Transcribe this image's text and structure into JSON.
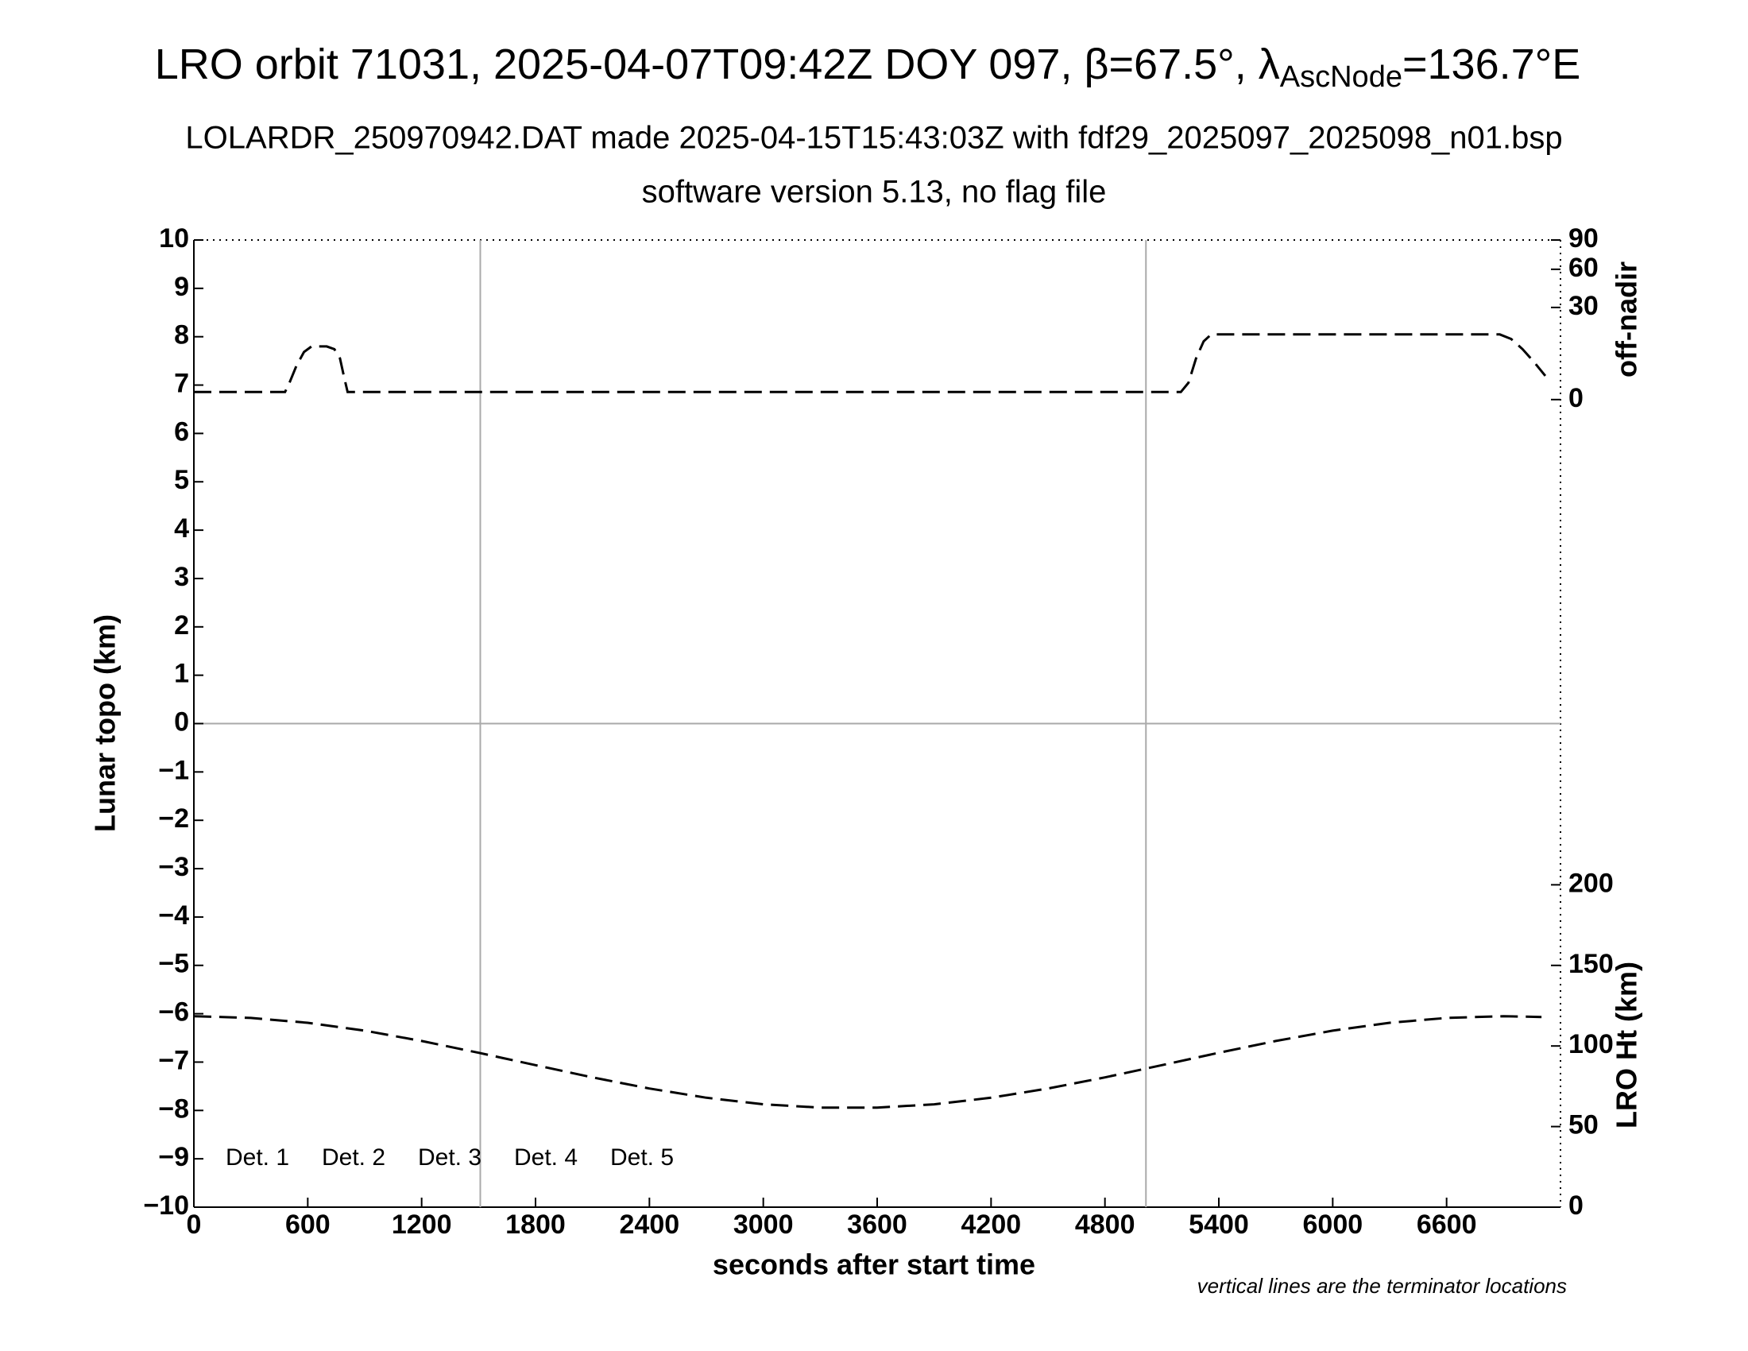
{
  "chart_data": {
    "type": "line",
    "title_parts": [
      "LRO orbit 71031, 2025-04-07T09:42Z DOY 097, β=67.5°, λ",
      "AscNode",
      "=136.7°E"
    ],
    "subtitle": "LOLARDR_250970942.DAT made 2025-04-15T15:43:03Z with fdf29_2025097_2025098_n01.bsp",
    "subtitle2": "software version 5.13, no flag file",
    "xlabel": "seconds after start time",
    "ylabel": "Lunar topo (km)",
    "nadir_label": "off-nadir",
    "ht_label": "LRO Ht (km)",
    "note": "vertical lines are the terminator locations",
    "xlim": [
      0,
      7200
    ],
    "xticks": [
      0,
      600,
      1200,
      1800,
      2400,
      3000,
      3600,
      4200,
      4800,
      5400,
      6000,
      6600
    ],
    "ylim": [
      -10,
      10
    ],
    "yticks": [
      {
        "value": -10,
        "label": "−10"
      },
      {
        "value": -9,
        "label": "−9"
      },
      {
        "value": -8,
        "label": "−8"
      },
      {
        "value": -7,
        "label": "−7"
      },
      {
        "value": -6,
        "label": "−6"
      },
      {
        "value": -5,
        "label": "−5"
      },
      {
        "value": -4,
        "label": "−4"
      },
      {
        "value": -3,
        "label": "−3"
      },
      {
        "value": -2,
        "label": "−2"
      },
      {
        "value": -1,
        "label": "−1"
      },
      0,
      1,
      2,
      3,
      4,
      5,
      6,
      7,
      8,
      9,
      10
    ],
    "nadir_lim": [
      0,
      90
    ],
    "nadir_scale": "sqrt",
    "nadir_ticks": [
      0,
      30,
      60,
      90
    ],
    "ht_lim": [
      0,
      200
    ],
    "ht_ticks": [
      0,
      50,
      100,
      150,
      200
    ],
    "terminators": [
      1509,
      5016
    ],
    "zero_line": true,
    "legend": [
      {
        "name": "Det. 1",
        "color": "#000000"
      },
      {
        "name": "Det. 2",
        "color": "#0000ff"
      },
      {
        "name": "Det. 3",
        "color": "#00ff00"
      },
      {
        "name": "Det. 4",
        "color": "#ffa500"
      },
      {
        "name": "Det. 5",
        "color": "#ff0000"
      }
    ],
    "lines": [
      {
        "axis": "nadir",
        "color": "#000000",
        "x": [
          0,
          480,
          500,
          540,
          580,
          620,
          700,
          740,
          770,
          790,
          810,
          5200,
          5240,
          5280,
          5320,
          5360,
          6880,
          6940,
          7000,
          7060,
          7120
        ],
        "values": [
          0.2,
          0.2,
          0.8,
          4,
          8,
          10,
          10,
          9,
          6,
          2,
          0.2,
          0.2,
          1,
          6,
          12,
          15,
          15,
          13,
          9,
          5,
          2
        ]
      },
      {
        "axis": "ht",
        "color": "#000000",
        "x": [
          0,
          300,
          600,
          900,
          1200,
          1500,
          1800,
          2100,
          2400,
          2700,
          3000,
          3300,
          3600,
          3900,
          4200,
          4500,
          4800,
          5100,
          5400,
          5700,
          6000,
          6300,
          6600,
          6900,
          7100
        ],
        "values": [
          118.5,
          117.4,
          114.4,
          109.5,
          103.1,
          95.8,
          88.1,
          80.5,
          73.6,
          67.9,
          63.8,
          61.8,
          61.8,
          63.8,
          67.9,
          73.6,
          80.5,
          88.1,
          95.8,
          103.1,
          109.5,
          114.4,
          117.4,
          118.5,
          118.0
        ]
      }
    ]
  }
}
